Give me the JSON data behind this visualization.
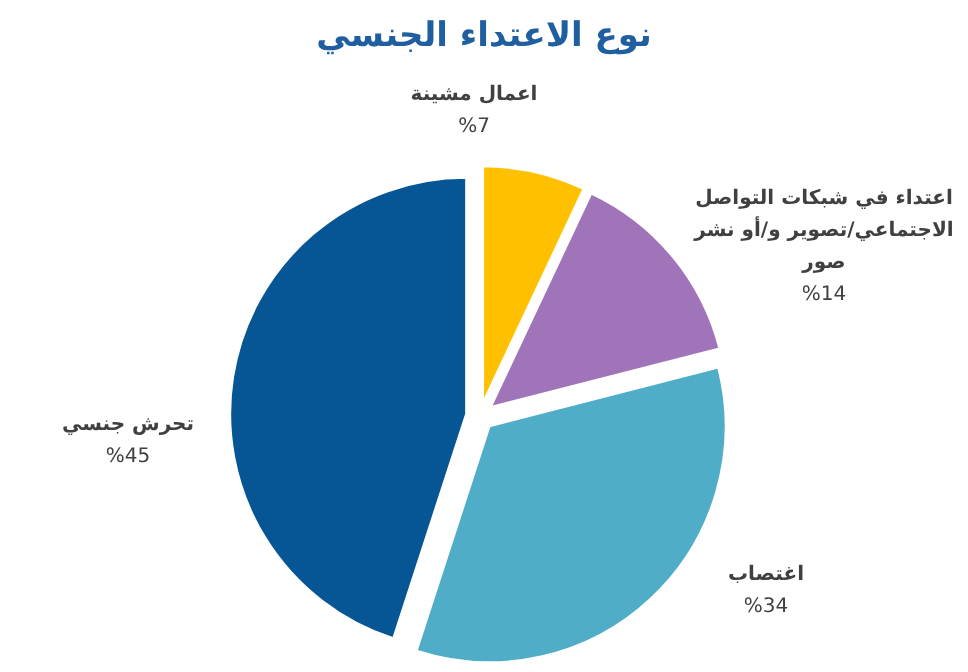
{
  "chart_data": {
    "type": "pie",
    "title": "نوع الاعتداء الجنسي",
    "categories": [
      "اعمال مشينة",
      "اعتداء في شبكات التواصل الاجتماعي/تصوير و/أو نشر صور",
      "اغتصاب",
      "تحرش جنسي"
    ],
    "values": [
      7,
      14,
      34,
      45
    ],
    "value_labels": [
      "%7",
      "%14",
      "%34",
      "%45"
    ],
    "colors": [
      "#ffc000",
      "#a074b8",
      "#4fadc8",
      "#065695"
    ]
  }
}
